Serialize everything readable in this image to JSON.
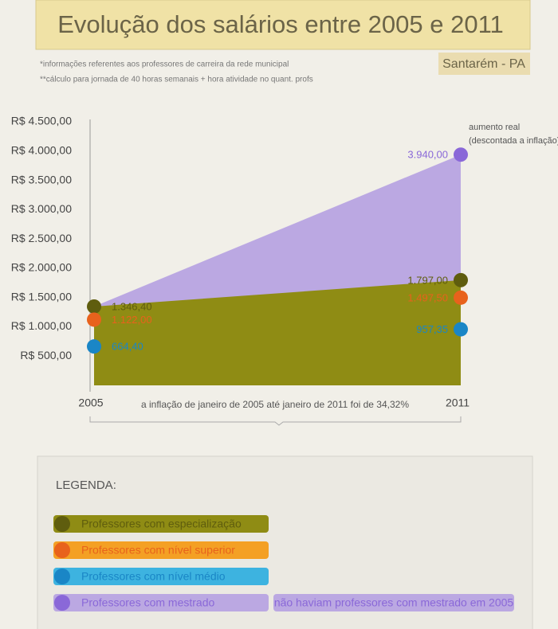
{
  "chart_data": {
    "type": "area",
    "title": "Evolução dos salários entre 2005 e 2011",
    "subtitle": "Santarém - PA",
    "notes": [
      "*informações referentes aos professores de carreira da rede municipal",
      "**cálculo para jornada de 40 horas semanais + hora atividade no quant. profs"
    ],
    "categories": [
      "2005",
      "2011"
    ],
    "series": [
      {
        "name": "Professores com especialização",
        "color": "#8f8c14",
        "marker_color": "#5f5d0e",
        "values": [
          1346.4,
          1797.0
        ],
        "value_labels": [
          "1.346,40",
          "1.797,00"
        ]
      },
      {
        "name": "Professores com nível superior",
        "color": "#f4a024",
        "marker_color": "#e8621c",
        "values": [
          1122.0,
          1497.5
        ],
        "value_labels": [
          "1.122,00",
          "1.497,50"
        ]
      },
      {
        "name": "Professores com nível médio",
        "color": "#3db3e0",
        "marker_color": "#1a86c6",
        "values": [
          664.4,
          957.35
        ],
        "value_labels": [
          "664,40",
          "957,35"
        ]
      },
      {
        "name": "Professores com mestrado",
        "color": "#bba8e2",
        "marker_color": "#8a68d8",
        "values": [
          null,
          3940.0
        ],
        "value_labels": [
          null,
          "3.940,00"
        ]
      }
    ],
    "ylim": [
      0,
      4500
    ],
    "yticks": [
      {
        "value": 500,
        "label": "R$ 500,00"
      },
      {
        "value": 1000,
        "label": "R$ 1.000,00"
      },
      {
        "value": 1500,
        "label": "R$ 1.500,00"
      },
      {
        "value": 2000,
        "label": "R$ 2.000,00"
      },
      {
        "value": 2500,
        "label": "R$ 2.500,00"
      },
      {
        "value": 3000,
        "label": "R$ 3.000,00"
      },
      {
        "value": 3500,
        "label": "R$ 3.500,00"
      },
      {
        "value": 4000,
        "label": "R$ 4.000,00"
      },
      {
        "value": 4500,
        "label": "R$ 4.500,00"
      }
    ],
    "grid": false,
    "annotation_lines": [
      "aumento real",
      "(descontada a inflação)"
    ],
    "x_note": "a inflação de janeiro de 2005 até janeiro de 2011 foi de 34,32%",
    "legend_title": "LEGENDA:",
    "legend_note": "não haviam professores com mestrado em 2005"
  }
}
